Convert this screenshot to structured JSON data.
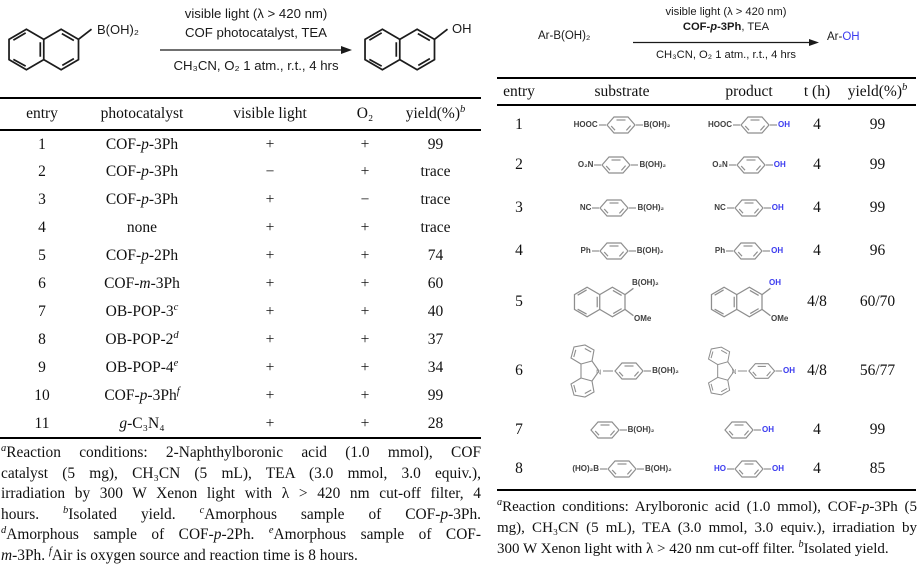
{
  "colors": {
    "blue": "#3b3bef",
    "structure_gray": "#8e8e8e",
    "text_black": "#111111"
  },
  "left_scheme": {
    "reactant_substituent": "B(OH)₂",
    "product_substituent": "OH",
    "above_line1": "visible light (λ > 420 nm)",
    "above_line2": "COF photocatalyst, TEA",
    "below_line": "CH₃CN, O₂ 1 atm., r.t., 4 hrs"
  },
  "left_table": {
    "headers": [
      "entry",
      "photocatalyst",
      "visible light",
      "O₂",
      "yield(%)^b^"
    ],
    "rows": [
      {
        "entry": "1",
        "photocatalyst": "COF-*p*-3Ph",
        "visible_light": "+",
        "o2": "+",
        "yield": "99"
      },
      {
        "entry": "2",
        "photocatalyst": "COF-*p*-3Ph",
        "visible_light": "−",
        "o2": "+",
        "yield": "trace"
      },
      {
        "entry": "3",
        "photocatalyst": "COF-*p*-3Ph",
        "visible_light": "+",
        "o2": "−",
        "yield": "trace"
      },
      {
        "entry": "4",
        "photocatalyst": "none",
        "visible_light": "+",
        "o2": "+",
        "yield": "trace"
      },
      {
        "entry": "5",
        "photocatalyst": "COF-*p*-2Ph",
        "visible_light": "+",
        "o2": "+",
        "yield": "74"
      },
      {
        "entry": "6",
        "photocatalyst": "COF-*m*-3Ph",
        "visible_light": "+",
        "o2": "+",
        "yield": "60"
      },
      {
        "entry": "7",
        "photocatalyst": "OB-POP-3^c^",
        "visible_light": "+",
        "o2": "+",
        "yield": "40"
      },
      {
        "entry": "8",
        "photocatalyst": "OB-POP-2^d^",
        "visible_light": "+",
        "o2": "+",
        "yield": "37"
      },
      {
        "entry": "9",
        "photocatalyst": "OB-POP-4^e^",
        "visible_light": "+",
        "o2": "+",
        "yield": "34"
      },
      {
        "entry": "10",
        "photocatalyst": "COF-*p*-3Ph^f^",
        "visible_light": "+",
        "o2": "+",
        "yield": "99"
      },
      {
        "entry": "11",
        "photocatalyst": "*g*-C₃N₄",
        "visible_light": "+",
        "o2": "+",
        "yield": "28"
      }
    ],
    "footnote_lines": [
      "^a^Reaction conditions: 2-Naphthylboronic acid (1.0 mmol), COF",
      "catalyst (5 mg), CH₃CN (5 mL), TEA (3.0 mmol, 3.0 equiv.),",
      "irradiation by 300 W Xenon light with λ > 420 nm cut-off filter, 4",
      "hours. ^b^Isolated yield. ^c^Amorphous sample of COF-*p*-3Ph.",
      "^d^Amorphous sample of COF-*p*-2Ph. ^e^Amorphous sample of COF-",
      "*m*-3Ph. ^f^Air is oxygen source and reaction time is 8 hours."
    ]
  },
  "right_scheme": {
    "reactant": "Ar-B(OH)₂",
    "above_line1": "visible light (λ > 420 nm)",
    "above_line2_bold": "COF-*p*-3Ph",
    "above_line2_rest": ", TEA",
    "below_line": "CH₃CN, O₂ 1 atm., r.t., 4 hrs",
    "product_prefix": "Ar-",
    "product_oh": "OH"
  },
  "right_table": {
    "headers": [
      "entry",
      "substrate",
      "product",
      "t (h)",
      "yield(%)^b^"
    ],
    "rows": [
      {
        "entry": "1",
        "type": "benzene-para",
        "sub_left": "HOOC",
        "sub_right": "B(OH)₂",
        "prod_left": "HOOC",
        "prod_right": "OH",
        "t": "4",
        "yield": "99"
      },
      {
        "entry": "2",
        "type": "benzene-para",
        "sub_left": "O₂N",
        "sub_right": "B(OH)₂",
        "prod_left": "O₂N",
        "prod_right": "OH",
        "t": "4",
        "yield": "99"
      },
      {
        "entry": "3",
        "type": "benzene-para",
        "sub_left": "NC",
        "sub_right": "B(OH)₂",
        "prod_left": "NC",
        "prod_right": "OH",
        "t": "4",
        "yield": "99"
      },
      {
        "entry": "4",
        "type": "benzene-para",
        "sub_left": "Ph",
        "sub_right": "B(OH)₂",
        "prod_left": "Ph",
        "prod_right": "OH",
        "t": "4",
        "yield": "96"
      },
      {
        "entry": "5",
        "type": "naphthalene-2,3",
        "sub_top": "B(OH)₂",
        "sub_bottom": "OMe",
        "prod_top": "OH",
        "prod_bottom": "OMe",
        "t": "4/8",
        "yield": "60/70"
      },
      {
        "entry": "6",
        "type": "carbazole-phenyl",
        "sub_right": "B(OH)₂",
        "prod_right": "OH",
        "n_label": "N",
        "t": "4/8",
        "yield": "56/77"
      },
      {
        "entry": "7",
        "type": "benzene-mono",
        "sub_right": "B(OH)₂",
        "prod_right": "OH",
        "t": "4",
        "yield": "99"
      },
      {
        "entry": "8",
        "type": "benzene-di",
        "sub_left": "(HO)₂B",
        "sub_right": "B(OH)₂",
        "prod_left": "HO",
        "prod_right": "OH",
        "t": "4",
        "yield": "85"
      }
    ],
    "footnote_lines": [
      "^a^Reaction conditions: Arylboronic acid (1.0 mmol), COF-*p*-3Ph (5",
      "mg), CH₃CN (5 mL), TEA (3.0 mmol, 3.0 equiv.), irradiation by",
      "300 W Xenon light with λ > 420 nm cut-off filter. ^b^Isolated yield."
    ]
  }
}
